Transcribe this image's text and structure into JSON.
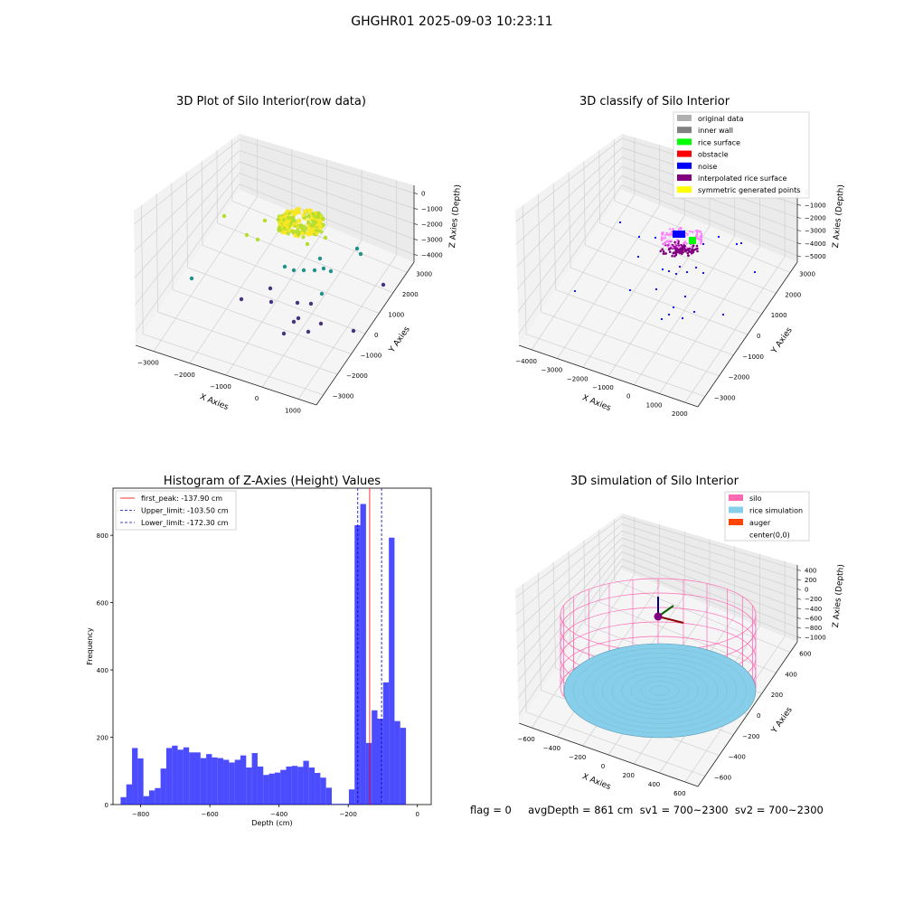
{
  "figure": {
    "suptitle": "GHGHR01 2025-09-03 10:23:11",
    "footer": "flag = 0     avgDepth = 861 cm  sv1 = 700~2300  sv2 = 700~2300"
  },
  "colors": {
    "viridis_dark": "#46327e",
    "viridis_mid": "#21918c",
    "viridis_light": "#b5de2b",
    "viridis_yellow": "#fde725",
    "hist_bar": "#0000ff",
    "peak_line": "#ff0000",
    "limit_line": "#0000cc",
    "silo": "#ff69b4",
    "rice": "#87ceeb",
    "auger": "#ff4500"
  },
  "chart_data": [
    {
      "type": "scatter",
      "title": "3D Plot of Silo Interior(row data)",
      "xlabel": "X Axies",
      "ylabel": "Y Axies",
      "zlabel": "Z Axies (Depth)",
      "x_ticks": [
        "−3000",
        "−2000",
        "−1000",
        "0",
        "1000"
      ],
      "y_ticks": [
        "−3000",
        "−2000",
        "−1000",
        "0",
        "1000",
        "2000",
        "3000"
      ],
      "z_ticks": [
        "0",
        "−1000",
        "−2000",
        "−3000",
        "−4000"
      ],
      "xlim": [
        -3500,
        1500
      ],
      "ylim": [
        -3500,
        3500
      ],
      "zlim": [
        -4500,
        0
      ],
      "colormap": "viridis"
    },
    {
      "type": "scatter",
      "title": "3D classify of Silo Interior",
      "xlabel": "X Axies",
      "ylabel": "Y Axies",
      "zlabel": "Z Axies (Depth)",
      "x_ticks": [
        "−4000",
        "−3000",
        "−2000",
        "−1000",
        "0",
        "1000",
        "2000"
      ],
      "y_ticks": [
        "−3000",
        "−2000",
        "−1000",
        "0",
        "1000",
        "2000",
        "3000"
      ],
      "z_ticks": [
        "0",
        "−1000",
        "−2000",
        "−3000",
        "−4000",
        "−5000"
      ],
      "legend_position": "top-right",
      "legend": [
        {
          "label": "original data",
          "color": "#b0b0b0"
        },
        {
          "label": "inner wall",
          "color": "#808080"
        },
        {
          "label": "rice surface",
          "color": "#00ff00"
        },
        {
          "label": "obstacle",
          "color": "#ff0000"
        },
        {
          "label": "noise",
          "color": "#0000ff"
        },
        {
          "label": "interpolated rice surface",
          "color": "#800080"
        },
        {
          "label": "symmetric generated points",
          "color": "#ffff00"
        }
      ]
    },
    {
      "type": "bar",
      "title": "Histogram of Z-Axies (Height) Values",
      "xlabel": "Depth (cm)",
      "ylabel": "Frequency",
      "xlim": [
        -880,
        40
      ],
      "ylim": [
        0,
        940
      ],
      "x_ticks": [
        -800,
        -600,
        -400,
        -200,
        0
      ],
      "x_tick_labels": [
        "−800",
        "−600",
        "−400",
        "−200",
        "0"
      ],
      "y_ticks": [
        0,
        200,
        400,
        600,
        800
      ],
      "bin_width": 16.5,
      "bin_start": -858,
      "values": [
        22,
        60,
        168,
        137,
        25,
        42,
        49,
        107,
        168,
        175,
        163,
        170,
        155,
        155,
        138,
        150,
        140,
        138,
        133,
        125,
        133,
        146,
        110,
        153,
        113,
        88,
        92,
        95,
        103,
        113,
        115,
        112,
        130,
        110,
        94,
        80,
        50,
        2,
        2,
        2,
        45,
        830,
        893,
        183,
        280,
        255,
        363,
        793,
        248,
        228
      ],
      "legend_position": "top-left",
      "lines": [
        {
          "label": "first_peak: -137.90 cm",
          "x": -137.9,
          "color": "#ff0000"
        },
        {
          "label": "Upper_limit: -103.50 cm",
          "x": -103.5,
          "color": "#0000cc"
        },
        {
          "label": "Lower_limit: -172.30 cm",
          "x": -172.3,
          "color": "#0000cc"
        }
      ]
    },
    {
      "type": "surface",
      "title": "3D simulation of Silo Interior",
      "xlabel": "X Axies",
      "ylabel": "Y Axies",
      "zlabel": "Z Axies (Depth)",
      "x_ticks": [
        "−600",
        "−400",
        "−200",
        "0",
        "200",
        "400",
        "600"
      ],
      "y_ticks": [
        "−600",
        "−400",
        "−200",
        "0",
        "200",
        "400",
        "600"
      ],
      "z_ticks": [
        "400",
        "200",
        "0",
        "−200",
        "−400",
        "−600",
        "−800",
        "−1000"
      ],
      "legend_position": "top-right",
      "legend": [
        {
          "label": "silo",
          "color": "#ff69b4"
        },
        {
          "label": "rice simulation",
          "color": "#87ceeb"
        },
        {
          "label": "auger",
          "color": "#ff4500"
        },
        {
          "label": "center(0,0)",
          "color": ""
        }
      ]
    }
  ]
}
